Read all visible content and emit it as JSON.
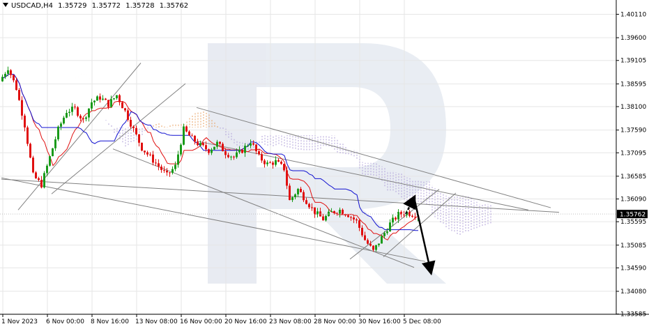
{
  "header": {
    "symbol": "USDCAD,H4",
    "open": "1.35729",
    "high": "1.35772",
    "low": "1.35728",
    "close": "1.35762"
  },
  "colors": {
    "bull": "#1a9a1a",
    "bear": "#e01010",
    "tenkan": "#e01010",
    "kijun": "#1010d0",
    "cloud_bull": "#e8a060",
    "cloud_bear": "#b0a0d8",
    "trendline": "#808080",
    "grid": "#e6e6e6",
    "arrow": "#000000"
  },
  "chart_data": {
    "type": "candlestick",
    "symbol": "USDCAD",
    "timeframe": "H4",
    "y_ticks": [
      "1.40110",
      "1.39600",
      "1.39105",
      "1.38595",
      "1.38100",
      "1.37590",
      "1.37095",
      "1.36585",
      "1.36090",
      "1.35595",
      "1.35085",
      "1.34590",
      "1.34080",
      "1.33585"
    ],
    "current_price": "1.35762",
    "x_ticks": [
      "1 Nov 2023",
      "6 Nov 00:00",
      "8 Nov 16:00",
      "13 Nov 08:00",
      "16 Nov 00:00",
      "20 Nov 16:00",
      "23 Nov 08:00",
      "28 Nov 00:00",
      "30 Nov 16:00",
      "5 Dec 08:00"
    ],
    "ylim": [
      1.3358,
      1.4036
    ],
    "bars": 150,
    "price_path": [
      [
        0,
        1.3865
      ],
      [
        3,
        1.3895
      ],
      [
        6,
        1.385
      ],
      [
        9,
        1.377
      ],
      [
        12,
        1.366
      ],
      [
        15,
        1.364
      ],
      [
        18,
        1.37
      ],
      [
        21,
        1.376
      ],
      [
        24,
        1.38
      ],
      [
        27,
        1.3805
      ],
      [
        30,
        1.378
      ],
      [
        33,
        1.382
      ],
      [
        36,
        1.383
      ],
      [
        39,
        1.3815
      ],
      [
        42,
        1.3835
      ],
      [
        45,
        1.38
      ],
      [
        48,
        1.376
      ],
      [
        51,
        1.372
      ],
      [
        54,
        1.37
      ],
      [
        57,
        1.368
      ],
      [
        60,
        1.366
      ],
      [
        63,
        1.368
      ],
      [
        66,
        1.376
      ],
      [
        69,
        1.374
      ],
      [
        72,
        1.3725
      ],
      [
        75,
        1.3715
      ],
      [
        78,
        1.373
      ],
      [
        81,
        1.371
      ],
      [
        84,
        1.37
      ],
      [
        87,
        1.3715
      ],
      [
        90,
        1.3735
      ],
      [
        93,
        1.37
      ],
      [
        96,
        1.3685
      ],
      [
        99,
        1.369
      ],
      [
        102,
        1.3675
      ],
      [
        104,
        1.3605
      ],
      [
        107,
        1.363
      ],
      [
        110,
        1.3605
      ],
      [
        113,
        1.358
      ],
      [
        116,
        1.3565
      ],
      [
        119,
        1.358
      ],
      [
        122,
        1.3585
      ],
      [
        125,
        1.3575
      ],
      [
        128,
        1.356
      ],
      [
        131,
        1.352
      ],
      [
        134,
        1.3495
      ],
      [
        137,
        1.3525
      ],
      [
        140,
        1.3555
      ],
      [
        143,
        1.3575
      ],
      [
        146,
        1.358
      ],
      [
        148,
        1.3576
      ]
    ],
    "forecast": [
      [
        145,
        1.3576
      ],
      [
        148,
        1.3612
      ],
      [
        154,
        1.345
      ]
    ]
  }
}
